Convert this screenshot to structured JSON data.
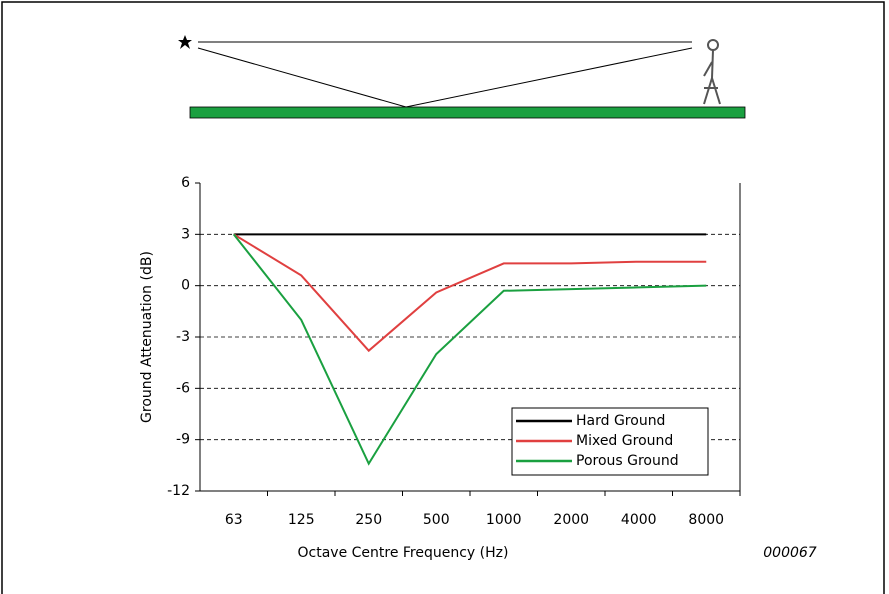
{
  "chart_data": {
    "type": "line",
    "xlabel": "Octave Centre Frequency (Hz)",
    "ylabel": "Ground Attenuation (dB)",
    "annotation": "000067",
    "categories": [
      "63",
      "125",
      "250",
      "500",
      "1000",
      "2000",
      "4000",
      "8000"
    ],
    "series": [
      {
        "name": "Hard Ground",
        "color": "#000000",
        "values": [
          3,
          3,
          3,
          3,
          3,
          3,
          3,
          3
        ]
      },
      {
        "name": "Mixed Ground",
        "color": "#e04040",
        "values": [
          3,
          0.6,
          -3.8,
          -0.4,
          1.3,
          1.3,
          1.4,
          1.4
        ]
      },
      {
        "name": "Porous Ground",
        "color": "#1aa040",
        "values": [
          3,
          -2,
          -10.4,
          -4,
          -0.3,
          -0.2,
          -0.1,
          0
        ]
      }
    ],
    "ylim": [
      -12,
      6
    ],
    "yticks": [
      6,
      3,
      0,
      -3,
      -6,
      -9,
      -12
    ],
    "grid": true,
    "legend": "lower right"
  }
}
